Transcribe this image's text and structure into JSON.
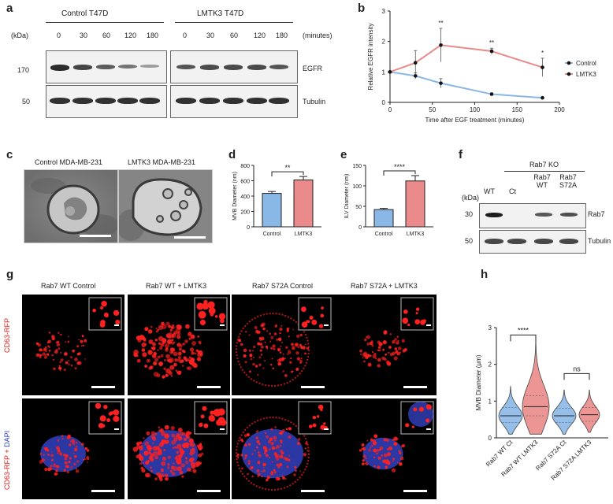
{
  "panels": {
    "a": {
      "letter": "a",
      "group_left": "Control T47D",
      "group_right": "LMTK3 T47D",
      "kda_label": "(kDa)",
      "minutes_label": "(minutes)",
      "timepoints": [
        "0",
        "30",
        "60",
        "120",
        "180"
      ],
      "markers": [
        "170",
        "50"
      ],
      "row_labels": [
        "EGFR",
        "Tubulin"
      ],
      "egfr_control_intensity": [
        0.9,
        0.75,
        0.6,
        0.45,
        0.2
      ],
      "egfr_lmtk3_intensity": [
        0.65,
        0.7,
        0.72,
        0.72,
        0.65
      ]
    },
    "b": {
      "letter": "b",
      "sig_labels": [
        "**",
        "**",
        "*"
      ],
      "legend": [
        "Control",
        "LMTK3"
      ],
      "colors": {
        "control": "#8ab8e6",
        "lmtk3": "#eb8a8a"
      }
    },
    "c": {
      "letter": "c",
      "labels": [
        "Control MDA-MB-231",
        "LMTK3 MDA-MB-231"
      ]
    },
    "d": {
      "letter": "d",
      "sig": "**"
    },
    "e": {
      "letter": "e",
      "sig": "****"
    },
    "f": {
      "letter": "f",
      "kda_label": "(kDa)",
      "group_label": "Rab7 KO",
      "lanes": [
        "WT",
        "Ct",
        "Rab7 WT",
        "Rab7 S72A"
      ],
      "markers": [
        "30",
        "50"
      ],
      "row_labels": [
        "Rab7",
        "Tubulin"
      ]
    },
    "g": {
      "letter": "g",
      "columns": [
        "Rab7 WT Control",
        "Rab7 WT + LMTK3",
        "Rab7 S72A Control",
        "Rab7 S72A + LMTK3"
      ],
      "row1_label": "CD63-RFP",
      "row2_label_a": "CD63-RFP + ",
      "row2_label_b": "DAPI",
      "red": "#ff2020",
      "blue": "#3a4ad8"
    },
    "h": {
      "letter": "h",
      "sig_labels": [
        "****",
        "ns"
      ]
    }
  },
  "chart_data": [
    {
      "type": "line",
      "panel": "b",
      "x": [
        0,
        30,
        60,
        120,
        180
      ],
      "series": [
        {
          "name": "Control",
          "values": [
            1.0,
            0.87,
            0.63,
            0.27,
            0.15
          ],
          "errors": [
            0.0,
            0.1,
            0.15,
            0.04,
            0.02
          ]
        },
        {
          "name": "LMTK3",
          "values": [
            1.0,
            1.3,
            1.88,
            1.68,
            1.15
          ],
          "errors": [
            0.0,
            0.4,
            0.55,
            0.1,
            0.3
          ]
        }
      ],
      "xlabel": "Time after EGF treatment (minutes)",
      "ylabel": "Relative EGFR intensity",
      "xlim": [
        0,
        200
      ],
      "ylim": [
        0,
        3
      ],
      "xticks": [
        0,
        50,
        100,
        150,
        200
      ],
      "yticks": [
        0,
        1,
        2,
        3
      ],
      "legend_position": "right"
    },
    {
      "type": "bar",
      "panel": "d",
      "categories": [
        "Control",
        "LMTK3"
      ],
      "values": [
        435,
        610
      ],
      "errors": [
        25,
        45
      ],
      "ylabel": "MVB Diameter (nm)",
      "ylim": [
        0,
        800
      ],
      "yticks": [
        0,
        200,
        400,
        600,
        800
      ]
    },
    {
      "type": "bar",
      "panel": "e",
      "categories": [
        "Control",
        "LMTK3"
      ],
      "values": [
        42,
        112
      ],
      "errors": [
        3,
        13
      ],
      "ylabel": "ILV Diameter (nm)",
      "ylim": [
        0,
        150
      ],
      "yticks": [
        0,
        50,
        100,
        150
      ]
    },
    {
      "type": "violin",
      "panel": "h",
      "categories": [
        "Rab7 WT Ct",
        "Rab7 WT LMTK3",
        "Rab7 S72A Ct",
        "Rab7 S72A LMTK3"
      ],
      "medians": [
        0.6,
        0.85,
        0.6,
        0.63
      ],
      "quartiles": [
        [
          0.42,
          0.82
        ],
        [
          0.6,
          1.15
        ],
        [
          0.42,
          0.8
        ],
        [
          0.45,
          0.82
        ]
      ],
      "ranges": [
        [
          0.1,
          1.4
        ],
        [
          0.1,
          2.7
        ],
        [
          0.1,
          1.3
        ],
        [
          0.15,
          1.3
        ]
      ],
      "ylabel": "MVB Diameter (μm)",
      "ylim": [
        0,
        3
      ],
      "yticks": [
        0,
        1,
        2,
        3
      ],
      "colors": [
        "#8ab8e6",
        "#eb8a8a",
        "#8ab8e6",
        "#eb8a8a"
      ]
    }
  ]
}
